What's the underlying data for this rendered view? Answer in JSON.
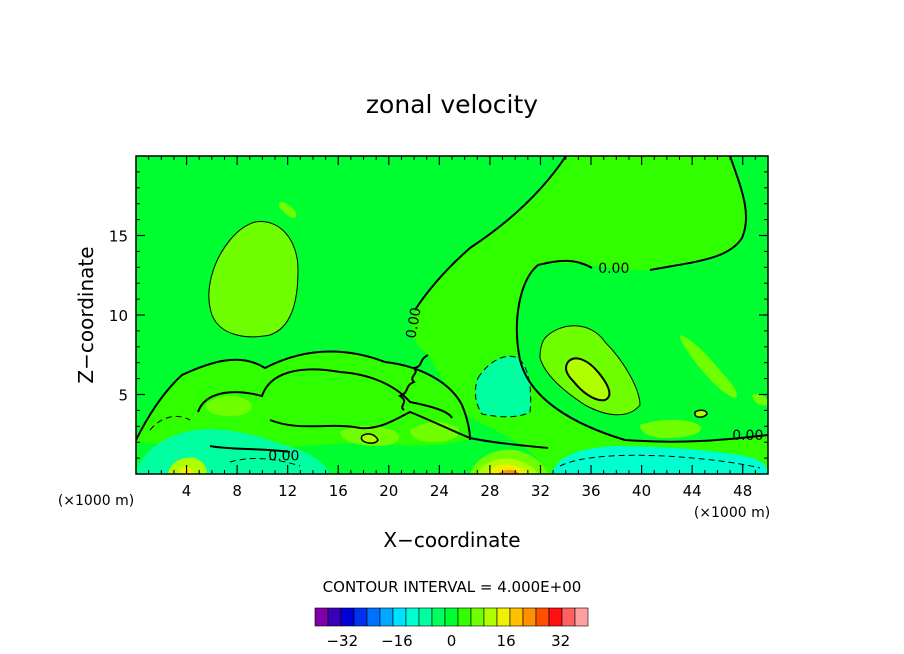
{
  "chart_data": {
    "type": "heatmap",
    "title": "zonal velocity",
    "xlabel": "X−coordinate",
    "ylabel": "Z−coordinate",
    "x_unit_label": "(×1000 m)",
    "x_unit_label_right": "(×1000 m)",
    "xlim": [
      0,
      50
    ],
    "ylim": [
      0,
      20
    ],
    "x_ticks": [
      4,
      8,
      12,
      16,
      20,
      24,
      28,
      32,
      36,
      40,
      44,
      48
    ],
    "y_ticks": [
      5,
      10,
      15
    ],
    "contour_interval_text": "CONTOUR INTERVAL = 4.000E+00",
    "contour_labels": [
      {
        "text": "0.00",
        "x": 37.8,
        "y": 12.9
      },
      {
        "text": "0.00",
        "x": 22.0,
        "y": 9.5
      },
      {
        "text": "0.00",
        "x": 11.7,
        "y": 1.1
      },
      {
        "text": "0.00",
        "x": 48.4,
        "y": 2.4
      }
    ],
    "colorbar": {
      "levels": [
        -40,
        -36,
        -32,
        -28,
        -24,
        -20,
        -16,
        -12,
        -8,
        -4,
        0,
        4,
        8,
        12,
        16,
        20,
        24,
        28,
        32,
        36,
        40
      ],
      "colors": [
        "#8000a8",
        "#3a00b8",
        "#0000d8",
        "#0030f0",
        "#0070ff",
        "#00a8ff",
        "#00e0ff",
        "#00ffd0",
        "#00ffa0",
        "#00ff60",
        "#00ff30",
        "#30ff00",
        "#70ff00",
        "#b0ff00",
        "#f0f000",
        "#ffc000",
        "#ff9000",
        "#ff5000",
        "#ff1010",
        "#ff6060",
        "#ffa0a0"
      ],
      "tick_labels": [
        "−32",
        "−16",
        "0",
        "16",
        "32"
      ],
      "tick_values": [
        -32,
        -16,
        0,
        16,
        32
      ]
    }
  }
}
